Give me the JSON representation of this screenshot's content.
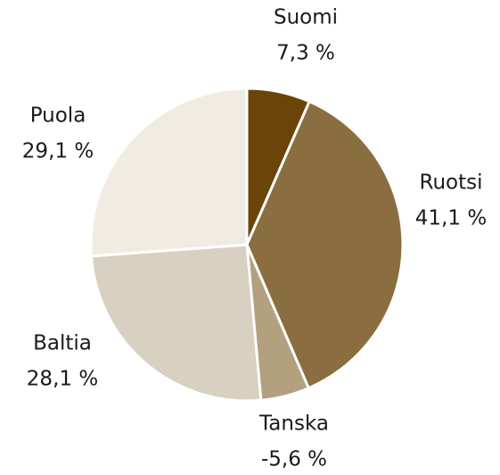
{
  "chart_data": {
    "type": "pie",
    "categories": [
      "Suomi",
      "Ruotsi",
      "Tanska",
      "Baltia",
      "Puola"
    ],
    "values": [
      7.3,
      41.1,
      -5.6,
      28.1,
      29.1
    ],
    "value_labels": [
      "7,3 %",
      "41,1 %",
      "-5,6 %",
      "28,1 %",
      "29,1 %"
    ],
    "colors": [
      "#6b4409",
      "#8a6e40",
      "#b3a07f",
      "#d8d0c0",
      "#f0ece2"
    ]
  }
}
